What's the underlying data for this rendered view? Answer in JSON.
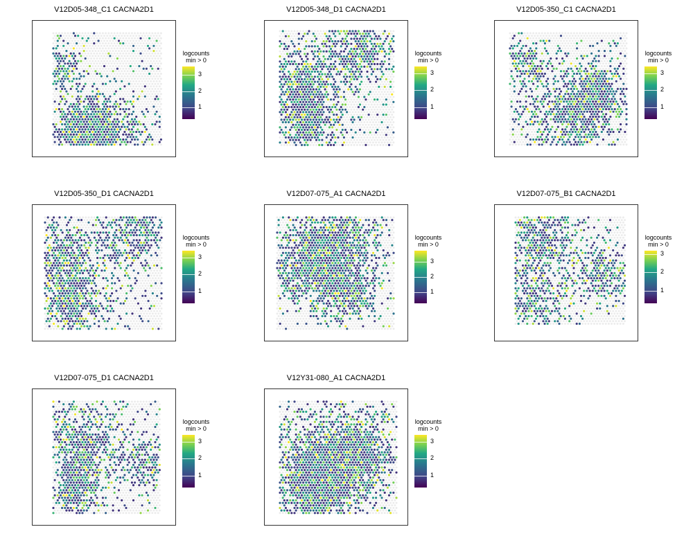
{
  "colors": {
    "background_spot": "#ececec",
    "viridis": [
      "#440154",
      "#414487",
      "#2a788e",
      "#22a884",
      "#7ad151",
      "#fde725"
    ]
  },
  "chart_data": [
    {
      "type": "scatter",
      "title": "V12D05-348_C1 CACNA2D1",
      "legend_title": "logcounts\nmin > 0",
      "color_scale": "viridis",
      "color_range": [
        0.3,
        3.5
      ],
      "legend_ticks": [
        "1",
        "2",
        "3"
      ],
      "legend_tick_values": [
        1,
        2,
        3
      ]
    },
    {
      "type": "scatter",
      "title": "V12D05-348_D1 CACNA2D1",
      "legend_title": "logcounts\nmin > 0",
      "color_scale": "viridis",
      "color_range": [
        0.3,
        3.4
      ],
      "legend_ticks": [
        "1",
        "2",
        "3"
      ],
      "legend_tick_values": [
        1,
        2,
        3
      ]
    },
    {
      "type": "scatter",
      "title": "V12D05-350_C1 CACNA2D1",
      "legend_title": "logcounts\nmin > 0",
      "color_scale": "viridis",
      "color_range": [
        0.3,
        3.4
      ],
      "legend_ticks": [
        "1",
        "2",
        "3"
      ],
      "legend_tick_values": [
        1,
        2,
        3
      ]
    },
    {
      "type": "scatter",
      "title": "V12D05-350_D1 CACNA2D1",
      "legend_title": "logcounts\nmin > 0",
      "color_scale": "viridis",
      "color_range": [
        0.3,
        3.4
      ],
      "legend_ticks": [
        "1",
        "2",
        "3"
      ],
      "legend_tick_values": [
        1,
        2,
        3
      ]
    },
    {
      "type": "scatter",
      "title": "V12D07-075_A1 CACNA2D1",
      "legend_title": "logcounts\nmin > 0",
      "color_scale": "viridis",
      "color_range": [
        0.3,
        3.7
      ],
      "legend_ticks": [
        "1",
        "2",
        "3"
      ],
      "legend_tick_values": [
        1,
        2,
        3
      ]
    },
    {
      "type": "scatter",
      "title": "V12D07-075_B1 CACNA2D1",
      "legend_title": "logcounts\nmin > 0",
      "color_scale": "viridis",
      "color_range": [
        0.3,
        3.2
      ],
      "legend_ticks": [
        "1",
        "2",
        "3"
      ],
      "legend_tick_values": [
        1,
        2,
        3
      ]
    },
    {
      "type": "scatter",
      "title": "V12D07-075_D1 CACNA2D1",
      "legend_title": "logcounts\nmin > 0",
      "color_scale": "viridis",
      "color_range": [
        0.3,
        3.4
      ],
      "legend_ticks": [
        "1",
        "2",
        "3"
      ],
      "legend_tick_values": [
        1,
        2,
        3
      ]
    },
    {
      "type": "scatter",
      "title": "V12Y31-080_A1 CACNA2D1",
      "legend_title": "logcounts\nmin > 0",
      "color_scale": "viridis",
      "color_range": [
        0.3,
        3.4
      ],
      "legend_ticks": [
        "1",
        "2",
        "3"
      ],
      "legend_tick_values": [
        1,
        2,
        3
      ]
    }
  ]
}
